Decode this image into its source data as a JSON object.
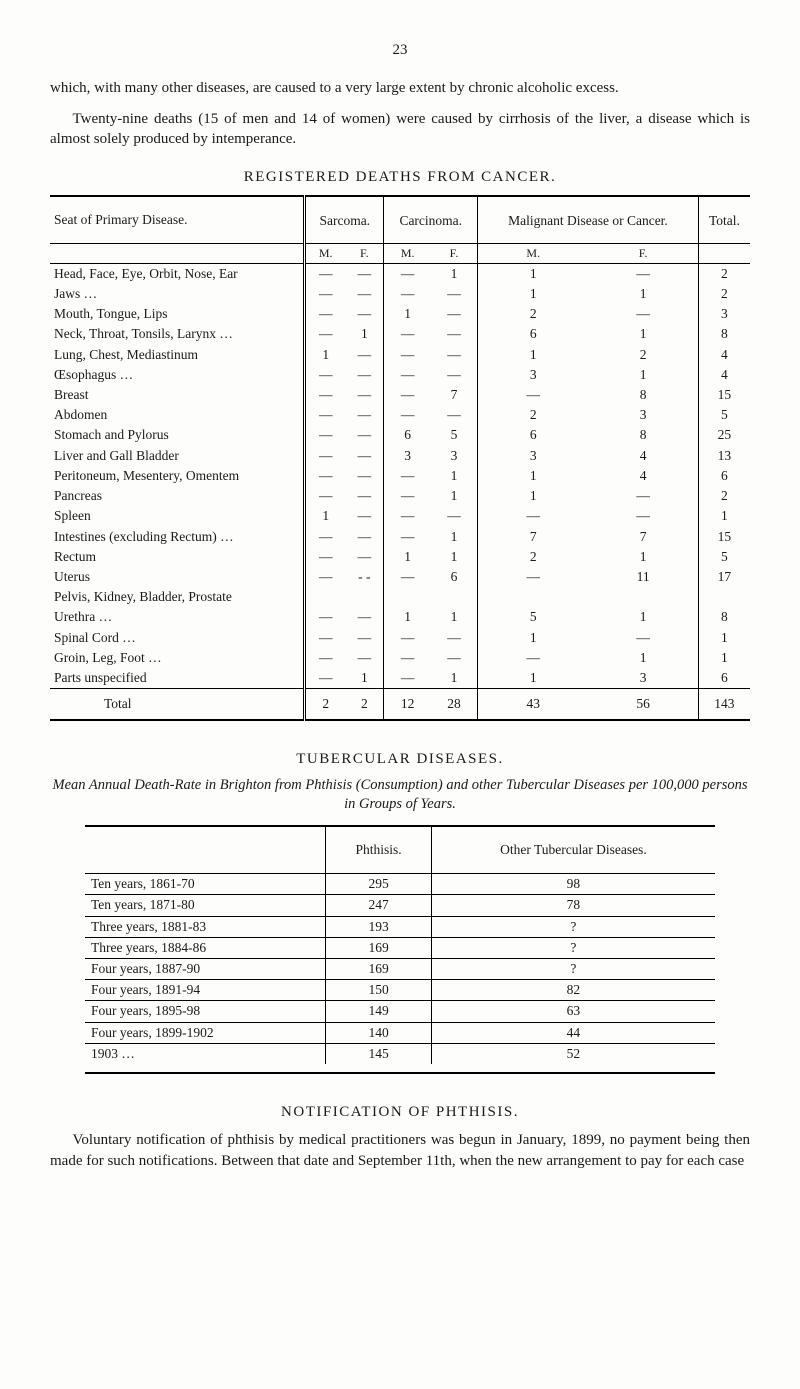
{
  "page_number": "23",
  "para1": "which, with many other diseases, are caused to a very large extent by chronic alcoholic excess.",
  "para2": "Twenty-nine deaths (15 of men and 14 of women) were caused by cirrhosis of the liver, a disease which is almost solely produced by intemperance.",
  "table1": {
    "title": "REGISTERED DEATHS FROM CANCER.",
    "col_seat": "Seat of Primary Disease.",
    "col_sarcoma": "Sarcoma.",
    "col_carcinoma": "Carcinoma.",
    "col_malig": "Malignant Disease or Cancer.",
    "col_total": "Total.",
    "sub_m": "M.",
    "sub_f": "F.",
    "rows": [
      {
        "seat": "Head, Face, Eye, Orbit, Nose, Ear",
        "sm": "—",
        "sf": "—",
        "cm": "—",
        "cf": "1",
        "mm": "1",
        "mf": "—",
        "t": "2"
      },
      {
        "seat": "Jaws …",
        "sm": "—",
        "sf": "—",
        "cm": "—",
        "cf": "—",
        "mm": "1",
        "mf": "1",
        "t": "2"
      },
      {
        "seat": "Mouth, Tongue, Lips",
        "sm": "—",
        "sf": "—",
        "cm": "1",
        "cf": "—",
        "mm": "2",
        "mf": "—",
        "t": "3"
      },
      {
        "seat": "Neck, Throat, Tonsils, Larynx …",
        "sm": "—",
        "sf": "1",
        "cm": "—",
        "cf": "—",
        "mm": "6",
        "mf": "1",
        "t": "8"
      },
      {
        "seat": "Lung, Chest, Mediastinum",
        "sm": "1",
        "sf": "—",
        "cm": "—",
        "cf": "—",
        "mm": "1",
        "mf": "2",
        "t": "4"
      },
      {
        "seat": "Œsophagus …",
        "sm": "—",
        "sf": "—",
        "cm": "—",
        "cf": "—",
        "mm": "3",
        "mf": "1",
        "t": "4"
      },
      {
        "seat": "Breast",
        "sm": "—",
        "sf": "—",
        "cm": "—",
        "cf": "7",
        "mm": "—",
        "mf": "8",
        "t": "15"
      },
      {
        "seat": "Abdomen",
        "sm": "—",
        "sf": "—",
        "cm": "—",
        "cf": "—",
        "mm": "2",
        "mf": "3",
        "t": "5"
      },
      {
        "seat": "Stomach and Pylorus",
        "sm": "—",
        "sf": "—",
        "cm": "6",
        "cf": "5",
        "mm": "6",
        "mf": "8",
        "t": "25"
      },
      {
        "seat": "Liver and Gall Bladder",
        "sm": "—",
        "sf": "—",
        "cm": "3",
        "cf": "3",
        "mm": "3",
        "mf": "4",
        "t": "13"
      },
      {
        "seat": "Peritoneum, Mesentery, Omentem",
        "sm": "—",
        "sf": "—",
        "cm": "—",
        "cf": "1",
        "mm": "1",
        "mf": "4",
        "t": "6"
      },
      {
        "seat": "Pancreas",
        "sm": "—",
        "sf": "—",
        "cm": "—",
        "cf": "1",
        "mm": "1",
        "mf": "—",
        "t": "2"
      },
      {
        "seat": "Spleen",
        "sm": "1",
        "sf": "—",
        "cm": "—",
        "cf": "—",
        "mm": "—",
        "mf": "—",
        "t": "1"
      },
      {
        "seat": "Intestines (excluding Rectum) …",
        "sm": "—",
        "sf": "—",
        "cm": "—",
        "cf": "1",
        "mm": "7",
        "mf": "7",
        "t": "15"
      },
      {
        "seat": "Rectum",
        "sm": "—",
        "sf": "—",
        "cm": "1",
        "cf": "1",
        "mm": "2",
        "mf": "1",
        "t": "5"
      },
      {
        "seat": "Uterus",
        "sm": "—",
        "sf": "- -",
        "cm": "—",
        "cf": "6",
        "mm": "—",
        "mf": "11",
        "t": "17"
      },
      {
        "seat": "Pelvis, Kidney, Bladder, Prostate",
        "sm": "",
        "sf": "",
        "cm": "",
        "cf": "",
        "mm": "",
        "mf": "",
        "t": ""
      },
      {
        "seat": "      Urethra …",
        "sm": "—",
        "sf": "—",
        "cm": "1",
        "cf": "1",
        "mm": "5",
        "mf": "1",
        "t": "8",
        "indent": true
      },
      {
        "seat": "Spinal Cord …",
        "sm": "—",
        "sf": "—",
        "cm": "—",
        "cf": "—",
        "mm": "1",
        "mf": "—",
        "t": "1"
      },
      {
        "seat": "Groin, Leg, Foot …",
        "sm": "—",
        "sf": "—",
        "cm": "—",
        "cf": "—",
        "mm": "—",
        "mf": "1",
        "t": "1"
      },
      {
        "seat": "Parts unspecified",
        "sm": "—",
        "sf": "1",
        "cm": "—",
        "cf": "1",
        "mm": "1",
        "mf": "3",
        "t": "6"
      }
    ],
    "total_label": "Total",
    "total": {
      "sm": "2",
      "sf": "2",
      "cm": "12",
      "cf": "28",
      "mm": "43",
      "mf": "56",
      "t": "143"
    }
  },
  "tubercular_title": "TUBERCULAR DISEASES.",
  "mean_line": "Mean Annual Death-Rate in Brighton from Phthisis (Consumption) and other Tubercular Diseases per 100,000 persons in Groups of Years.",
  "table2": {
    "col_phthisis": "Phthisis.",
    "col_other": "Other Tubercular Diseases.",
    "rows": [
      {
        "label": "Ten years, 1861-70",
        "p": "295",
        "o": "98"
      },
      {
        "label": "Ten years, 1871-80",
        "p": "247",
        "o": "78"
      },
      {
        "label": "Three years, 1881-83",
        "p": "193",
        "o": "?"
      },
      {
        "label": "Three years, 1884-86",
        "p": "169",
        "o": "?"
      },
      {
        "label": "Four years, 1887-90",
        "p": "169",
        "o": "?"
      },
      {
        "label": "Four years, 1891-94",
        "p": "150",
        "o": "82"
      },
      {
        "label": "Four years, 1895-98",
        "p": "149",
        "o": "63"
      },
      {
        "label": "Four years, 1899-1902",
        "p": "140",
        "o": "44"
      },
      {
        "label": "1903 …",
        "p": "145",
        "o": "52"
      }
    ]
  },
  "notif_title": "NOTIFICATION OF PHTHISIS.",
  "para3": "Voluntary notification of phthisis by medical practitioners was begun in January, 1899, no payment being then made for such notifications. Between that date and September 11th, when the new arrangement to pay for each case"
}
